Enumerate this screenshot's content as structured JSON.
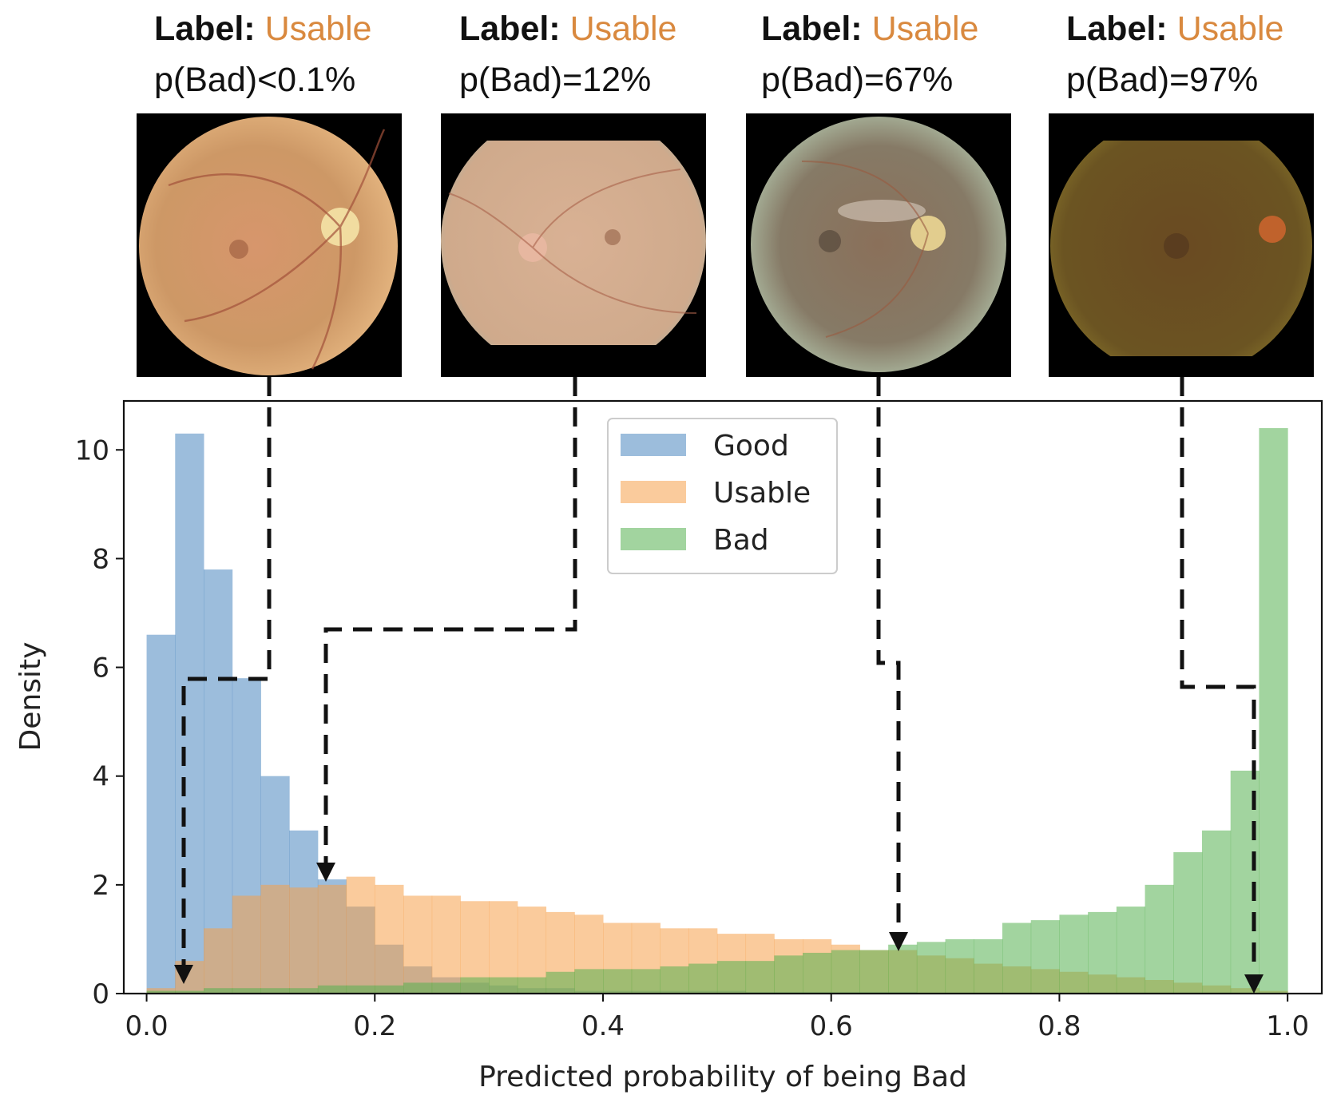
{
  "samples": [
    {
      "label_key": "Label:",
      "label_value": "Usable",
      "prob_text": "p(Bad)<0.1%",
      "p_bad": 0.001,
      "image_name": "fundus-photo-1"
    },
    {
      "label_key": "Label:",
      "label_value": "Usable",
      "prob_text": "p(Bad)=12%",
      "p_bad": 0.12,
      "image_name": "fundus-photo-2"
    },
    {
      "label_key": "Label:",
      "label_value": "Usable",
      "prob_text": "p(Bad)=67%",
      "p_bad": 0.67,
      "image_name": "fundus-photo-3"
    },
    {
      "label_key": "Label:",
      "label_value": "Usable",
      "prob_text": "p(Bad)=97%",
      "p_bad": 0.97,
      "image_name": "fundus-photo-4"
    }
  ],
  "colors": {
    "good": "#4a86c0",
    "usable": "#f5a04a",
    "bad": "#55b051",
    "label_accent": "#d9893f"
  },
  "chart_data": {
    "type": "histogram",
    "xlabel": "Predicted probability of being Bad",
    "ylabel": "Density",
    "xlim": [
      -0.02,
      1.03
    ],
    "ylim": [
      0,
      10.9
    ],
    "xticks": [
      "0.0",
      "0.2",
      "0.4",
      "0.6",
      "0.8",
      "1.0"
    ],
    "yticks": [
      "0",
      "2",
      "4",
      "6",
      "8",
      "10"
    ],
    "grid": false,
    "legend_position": "top-center",
    "bin_width": 0.025,
    "bin_start": 0.0,
    "series": [
      {
        "name": "Good",
        "color": "#4a86c0",
        "values": [
          6.6,
          10.3,
          7.8,
          5.8,
          4.0,
          3.0,
          2.1,
          1.6,
          0.9,
          0.5,
          0.3,
          0.2,
          0.15,
          0.1,
          0.1,
          0.05,
          0.05,
          0.05,
          0.05,
          0.05,
          0.05,
          0.03,
          0.03,
          0.03,
          0.03,
          0.03,
          0.03,
          0.02,
          0.02,
          0.02,
          0.02,
          0.02,
          0.02,
          0.02,
          0.02,
          0.02,
          0.02,
          0.02,
          0.02,
          0.01
        ]
      },
      {
        "name": "Usable",
        "color": "#f5a04a",
        "values": [
          0.1,
          0.6,
          1.2,
          1.8,
          2.0,
          1.95,
          2.0,
          2.15,
          2.0,
          1.8,
          1.8,
          1.7,
          1.7,
          1.6,
          1.5,
          1.45,
          1.3,
          1.3,
          1.2,
          1.2,
          1.1,
          1.1,
          1.0,
          1.0,
          0.9,
          0.8,
          0.8,
          0.7,
          0.65,
          0.55,
          0.5,
          0.45,
          0.4,
          0.35,
          0.3,
          0.25,
          0.2,
          0.15,
          0.1,
          0.05
        ]
      },
      {
        "name": "Bad",
        "color": "#55b051",
        "values": [
          0.05,
          0.05,
          0.1,
          0.1,
          0.1,
          0.1,
          0.15,
          0.15,
          0.15,
          0.2,
          0.2,
          0.3,
          0.3,
          0.3,
          0.4,
          0.45,
          0.45,
          0.45,
          0.5,
          0.55,
          0.6,
          0.6,
          0.7,
          0.75,
          0.8,
          0.8,
          0.9,
          0.95,
          1.0,
          1.0,
          1.3,
          1.35,
          1.45,
          1.5,
          1.6,
          2.0,
          2.6,
          3.0,
          4.1,
          10.4
        ]
      }
    ]
  }
}
